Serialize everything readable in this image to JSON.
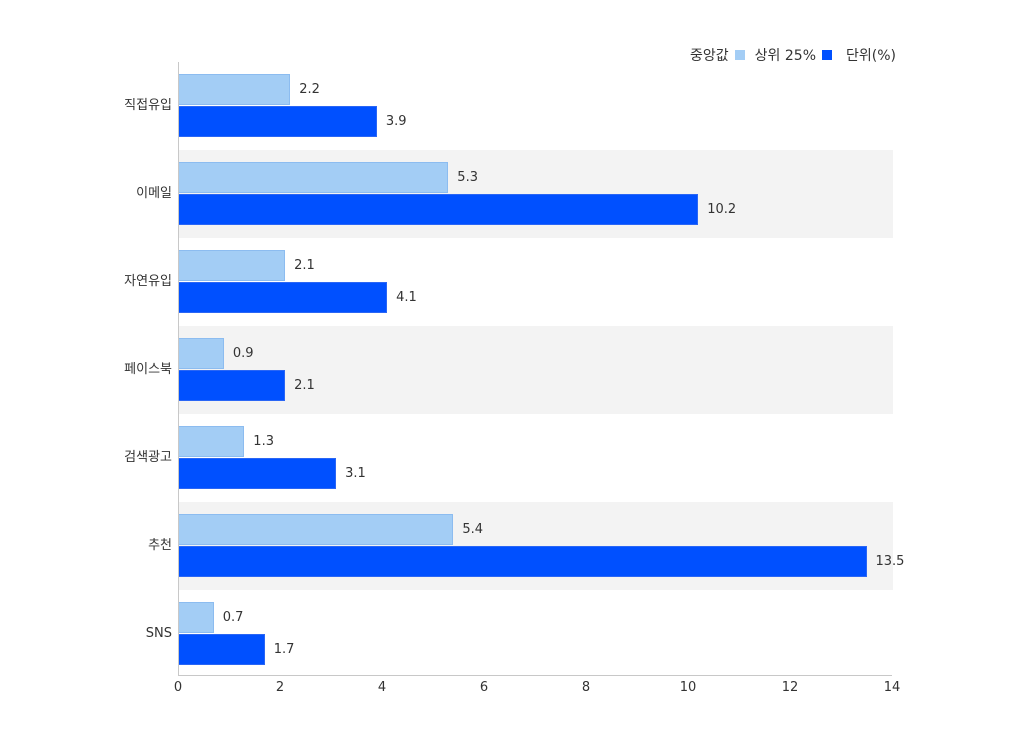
{
  "chart_data": {
    "type": "bar",
    "orientation": "horizontal",
    "title": "",
    "xlabel": "",
    "ylabel": "",
    "unit_label": "단위(%)",
    "categories": [
      "직접유입",
      "이메일",
      "자연유입",
      "페이스북",
      "검색광고",
      "추천",
      "SNS"
    ],
    "series": [
      {
        "name": "중앙값",
        "color": "#a3cdf5",
        "values": [
          2.2,
          5.3,
          2.1,
          0.9,
          1.3,
          5.4,
          0.7
        ]
      },
      {
        "name": "상위 25%",
        "color": "#0050ff",
        "values": [
          3.9,
          10.2,
          4.1,
          2.1,
          3.1,
          13.5,
          1.7
        ]
      }
    ],
    "xlim": [
      0,
      14
    ],
    "x_ticks": [
      "0",
      "2",
      "4",
      "6",
      "8",
      "10",
      "12",
      "14"
    ],
    "grid": false,
    "alternating_row_bands": true,
    "band_color": "#f3f3f3",
    "legend_position": "top-right"
  },
  "legend": {
    "items": [
      {
        "label": "중앙값",
        "color": "#a3cdf5"
      },
      {
        "label": "상위 25%",
        "color": "#0050ff"
      }
    ],
    "unit": "단위(%)"
  }
}
